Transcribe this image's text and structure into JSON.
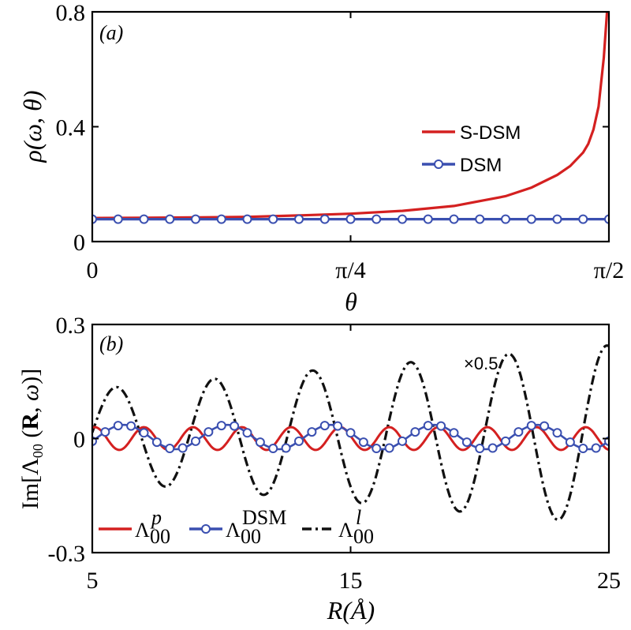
{
  "chart_data": [
    {
      "panel": "(a)",
      "type": "line",
      "xlabel": "θ",
      "ylabel": "ρ(ω, θ)",
      "xlim": [
        0,
        1.5708
      ],
      "ylim": [
        0,
        0.8
      ],
      "xticks": [
        0,
        0.7854,
        1.5708
      ],
      "xtick_labels": [
        "0",
        "π/4",
        "π/2"
      ],
      "yticks": [
        0,
        0.4,
        0.8
      ],
      "ytick_labels": [
        "0",
        "0.4",
        "0.8"
      ],
      "grid": false,
      "legend_position": "right",
      "series": [
        {
          "name": "S-DSM",
          "color": "#d42020",
          "marker": "none",
          "x": [
            0,
            0.1571,
            0.3142,
            0.4712,
            0.6283,
            0.7854,
            0.9425,
            1.0996,
            1.2566,
            1.3352,
            1.4137,
            1.453,
            1.4923,
            1.508,
            1.5237,
            1.5394,
            1.5551,
            1.565
          ],
          "y": [
            0.082,
            0.083,
            0.084,
            0.086,
            0.091,
            0.097,
            0.107,
            0.124,
            0.158,
            0.188,
            0.232,
            0.263,
            0.31,
            0.34,
            0.39,
            0.47,
            0.64,
            0.8
          ]
        },
        {
          "name": "DSM",
          "color": "#3a4fb0",
          "marker": "circle",
          "x": [
            0,
            1.5708
          ],
          "y": [
            0.078,
            0.078
          ],
          "marker_x": [
            0,
            0.0785,
            0.1571,
            0.2356,
            0.3142,
            0.3927,
            0.4712,
            0.5498,
            0.6283,
            0.7069,
            0.7854,
            0.8639,
            0.9425,
            1.021,
            1.0996,
            1.1781,
            1.2566,
            1.3352,
            1.4137,
            1.4923,
            1.5708
          ]
        }
      ]
    },
    {
      "panel": "(b)",
      "type": "line",
      "xlabel": "R(Å)",
      "ylabel": "Im[Λ00(R, ω)]",
      "xlim": [
        5,
        25
      ],
      "ylim": [
        -0.3,
        0.3
      ],
      "xticks": [
        5,
        15,
        25
      ],
      "xtick_labels": [
        "5",
        "15",
        "25"
      ],
      "yticks": [
        -0.3,
        0,
        0.3
      ],
      "ytick_labels": [
        "-0.3",
        "0",
        "0.3"
      ],
      "grid": false,
      "legend_position": "bottom",
      "annotation": "×0.5",
      "series": [
        {
          "name": "Λ00^p",
          "color": "#d42020",
          "marker": "none",
          "model": {
            "amplitude": 0.03,
            "period": 1.9,
            "phase": 1.25,
            "offset": 0.0
          }
        },
        {
          "name": "Λ00^DSM",
          "color": "#3a4fb0",
          "marker": "circle",
          "marker_x": [
            5.0,
            5.5,
            6.0,
            6.5,
            7.0,
            7.5,
            8.0,
            8.5,
            9.0,
            9.5,
            10.0,
            10.5,
            11.0,
            11.5,
            12.0,
            12.5,
            13.0,
            13.5,
            14.0,
            14.5,
            15.0,
            15.5,
            16.0,
            16.5,
            17.0,
            17.5,
            18.0,
            18.5,
            19.0,
            19.5,
            20.0,
            20.5,
            21.0,
            21.5,
            22.0,
            22.5,
            23.0,
            23.5,
            24.0,
            24.5,
            25.0
          ],
          "model": {
            "amplitude": 0.032,
            "period": 4.0,
            "phase": -0.35,
            "offset": 0.004
          }
        },
        {
          "name": "Λ00^l",
          "color": "#111111",
          "marker": "none",
          "dash": "dashdot",
          "model": {
            "amplitude_start": 0.12,
            "amplitude_end": 0.235,
            "period": 3.8,
            "phase": 0.05,
            "offset": 0.01
          }
        }
      ]
    }
  ],
  "labels": {
    "panel_a": "(a)",
    "panel_b": "(b)",
    "annotation_b": "×0.5",
    "legend_a": [
      "S-DSM",
      "DSM"
    ]
  },
  "colors": {
    "red": "#d42020",
    "blue": "#3a4fb0",
    "black": "#111111"
  }
}
